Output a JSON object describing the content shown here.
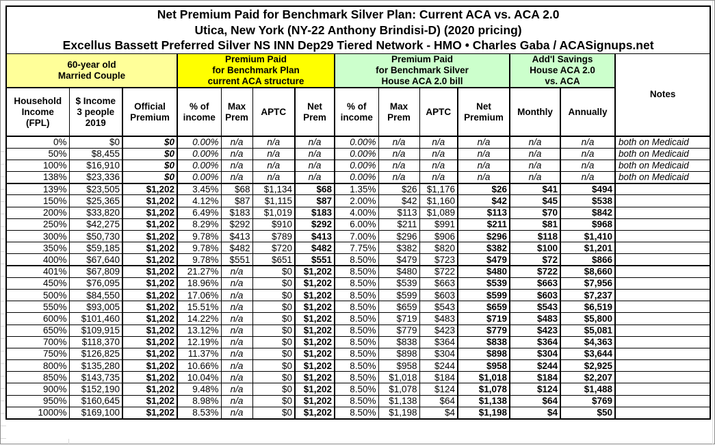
{
  "title": {
    "line1": "Net Premium Paid for Benchmark Silver Plan: Current ACA vs. ACA 2.0",
    "line2": "Utica, New York (NY-22 Anthony Brindisi-D) (2020 pricing)",
    "line3": "Excellus Bassett Preferred Silver NS INN Dep29 Tiered Network - HMO • Charles Gaba / ACASignups.net"
  },
  "groups": {
    "household": "60-year old\nMarried Couple",
    "current_aca": "Premium Paid\nfor Benchmark Plan\ncurrent ACA structure",
    "aca20": "Premium Paid\nfor Benchmark Silver\nHouse ACA 2.0 bill",
    "savings": "Add'l Savings\nHouse ACA 2.0\nvs. ACA"
  },
  "columns": [
    "Household\nIncome\n(FPL)",
    "$ Income\n3 people\n2019",
    "Official\nPremium",
    "% of\nincome",
    "Max\nPrem",
    "APTC",
    "Net\nPrem",
    "% of\nincome",
    "Max\nPrem",
    "APTC",
    "Net\nPremium",
    "Monthly",
    "Annually",
    "Notes"
  ],
  "colors": {
    "pale_yellow": "#FFFF99",
    "yellow": "#FFFF00",
    "green": "#CCFFCC",
    "border": "#000000"
  },
  "rows": [
    [
      "0%",
      "$0",
      "$0",
      "0.00%",
      "n/a",
      "n/a",
      "n/a",
      "0.00%",
      "n/a",
      "n/a",
      "n/a",
      "n/a",
      "n/a",
      "both on Medicaid"
    ],
    [
      "50%",
      "$8,455",
      "$0",
      "0.00%",
      "n/a",
      "n/a",
      "n/a",
      "0.00%",
      "n/a",
      "n/a",
      "n/a",
      "n/a",
      "n/a",
      "both on Medicaid"
    ],
    [
      "100%",
      "$16,910",
      "$0",
      "0.00%",
      "n/a",
      "n/a",
      "n/a",
      "0.00%",
      "n/a",
      "n/a",
      "n/a",
      "n/a",
      "n/a",
      "both on Medicaid"
    ],
    [
      "138%",
      "$23,336",
      "$0",
      "0.00%",
      "n/a",
      "n/a",
      "n/a",
      "0.00%",
      "n/a",
      "n/a",
      "n/a",
      "n/a",
      "n/a",
      "both on Medicaid"
    ],
    [
      "139%",
      "$23,505",
      "$1,202",
      "3.45%",
      "$68",
      "$1,134",
      "$68",
      "1.35%",
      "$26",
      "$1,176",
      "$26",
      "$41",
      "$494",
      ""
    ],
    [
      "150%",
      "$25,365",
      "$1,202",
      "4.12%",
      "$87",
      "$1,115",
      "$87",
      "2.00%",
      "$42",
      "$1,160",
      "$42",
      "$45",
      "$538",
      ""
    ],
    [
      "200%",
      "$33,820",
      "$1,202",
      "6.49%",
      "$183",
      "$1,019",
      "$183",
      "4.00%",
      "$113",
      "$1,089",
      "$113",
      "$70",
      "$842",
      ""
    ],
    [
      "250%",
      "$42,275",
      "$1,202",
      "8.29%",
      "$292",
      "$910",
      "$292",
      "6.00%",
      "$211",
      "$991",
      "$211",
      "$81",
      "$968",
      ""
    ],
    [
      "300%",
      "$50,730",
      "$1,202",
      "9.78%",
      "$413",
      "$789",
      "$413",
      "7.00%",
      "$296",
      "$906",
      "$296",
      "$118",
      "$1,410",
      ""
    ],
    [
      "350%",
      "$59,185",
      "$1,202",
      "9.78%",
      "$482",
      "$720",
      "$482",
      "7.75%",
      "$382",
      "$820",
      "$382",
      "$100",
      "$1,201",
      ""
    ],
    [
      "400%",
      "$67,640",
      "$1,202",
      "9.78%",
      "$551",
      "$651",
      "$551",
      "8.50%",
      "$479",
      "$723",
      "$479",
      "$72",
      "$866",
      ""
    ],
    [
      "401%",
      "$67,809",
      "$1,202",
      "21.27%",
      "n/a",
      "$0",
      "$1,202",
      "8.50%",
      "$480",
      "$722",
      "$480",
      "$722",
      "$8,660",
      ""
    ],
    [
      "450%",
      "$76,095",
      "$1,202",
      "18.96%",
      "n/a",
      "$0",
      "$1,202",
      "8.50%",
      "$539",
      "$663",
      "$539",
      "$663",
      "$7,956",
      ""
    ],
    [
      "500%",
      "$84,550",
      "$1,202",
      "17.06%",
      "n/a",
      "$0",
      "$1,202",
      "8.50%",
      "$599",
      "$603",
      "$599",
      "$603",
      "$7,237",
      ""
    ],
    [
      "550%",
      "$93,005",
      "$1,202",
      "15.51%",
      "n/a",
      "$0",
      "$1,202",
      "8.50%",
      "$659",
      "$543",
      "$659",
      "$543",
      "$6,519",
      ""
    ],
    [
      "600%",
      "$101,460",
      "$1,202",
      "14.22%",
      "n/a",
      "$0",
      "$1,202",
      "8.50%",
      "$719",
      "$483",
      "$719",
      "$483",
      "$5,800",
      ""
    ],
    [
      "650%",
      "$109,915",
      "$1,202",
      "13.12%",
      "n/a",
      "$0",
      "$1,202",
      "8.50%",
      "$779",
      "$423",
      "$779",
      "$423",
      "$5,081",
      ""
    ],
    [
      "700%",
      "$118,370",
      "$1,202",
      "12.19%",
      "n/a",
      "$0",
      "$1,202",
      "8.50%",
      "$838",
      "$364",
      "$838",
      "$364",
      "$4,363",
      ""
    ],
    [
      "750%",
      "$126,825",
      "$1,202",
      "11.37%",
      "n/a",
      "$0",
      "$1,202",
      "8.50%",
      "$898",
      "$304",
      "$898",
      "$304",
      "$3,644",
      ""
    ],
    [
      "800%",
      "$135,280",
      "$1,202",
      "10.66%",
      "n/a",
      "$0",
      "$1,202",
      "8.50%",
      "$958",
      "$244",
      "$958",
      "$244",
      "$2,925",
      ""
    ],
    [
      "850%",
      "$143,735",
      "$1,202",
      "10.04%",
      "n/a",
      "$0",
      "$1,202",
      "8.50%",
      "$1,018",
      "$184",
      "$1,018",
      "$184",
      "$2,207",
      ""
    ],
    [
      "900%",
      "$152,190",
      "$1,202",
      "9.48%",
      "n/a",
      "$0",
      "$1,202",
      "8.50%",
      "$1,078",
      "$124",
      "$1,078",
      "$124",
      "$1,488",
      ""
    ],
    [
      "950%",
      "$160,645",
      "$1,202",
      "8.98%",
      "n/a",
      "$0",
      "$1,202",
      "8.50%",
      "$1,138",
      "$64",
      "$1,138",
      "$64",
      "$769",
      ""
    ],
    [
      "1000%",
      "$169,100",
      "$1,202",
      "8.53%",
      "n/a",
      "$0",
      "$1,202",
      "8.50%",
      "$1,198",
      "$4",
      "$1,198",
      "$4",
      "$50",
      ""
    ]
  ],
  "group_end_row_indices": [
    3,
    10
  ]
}
